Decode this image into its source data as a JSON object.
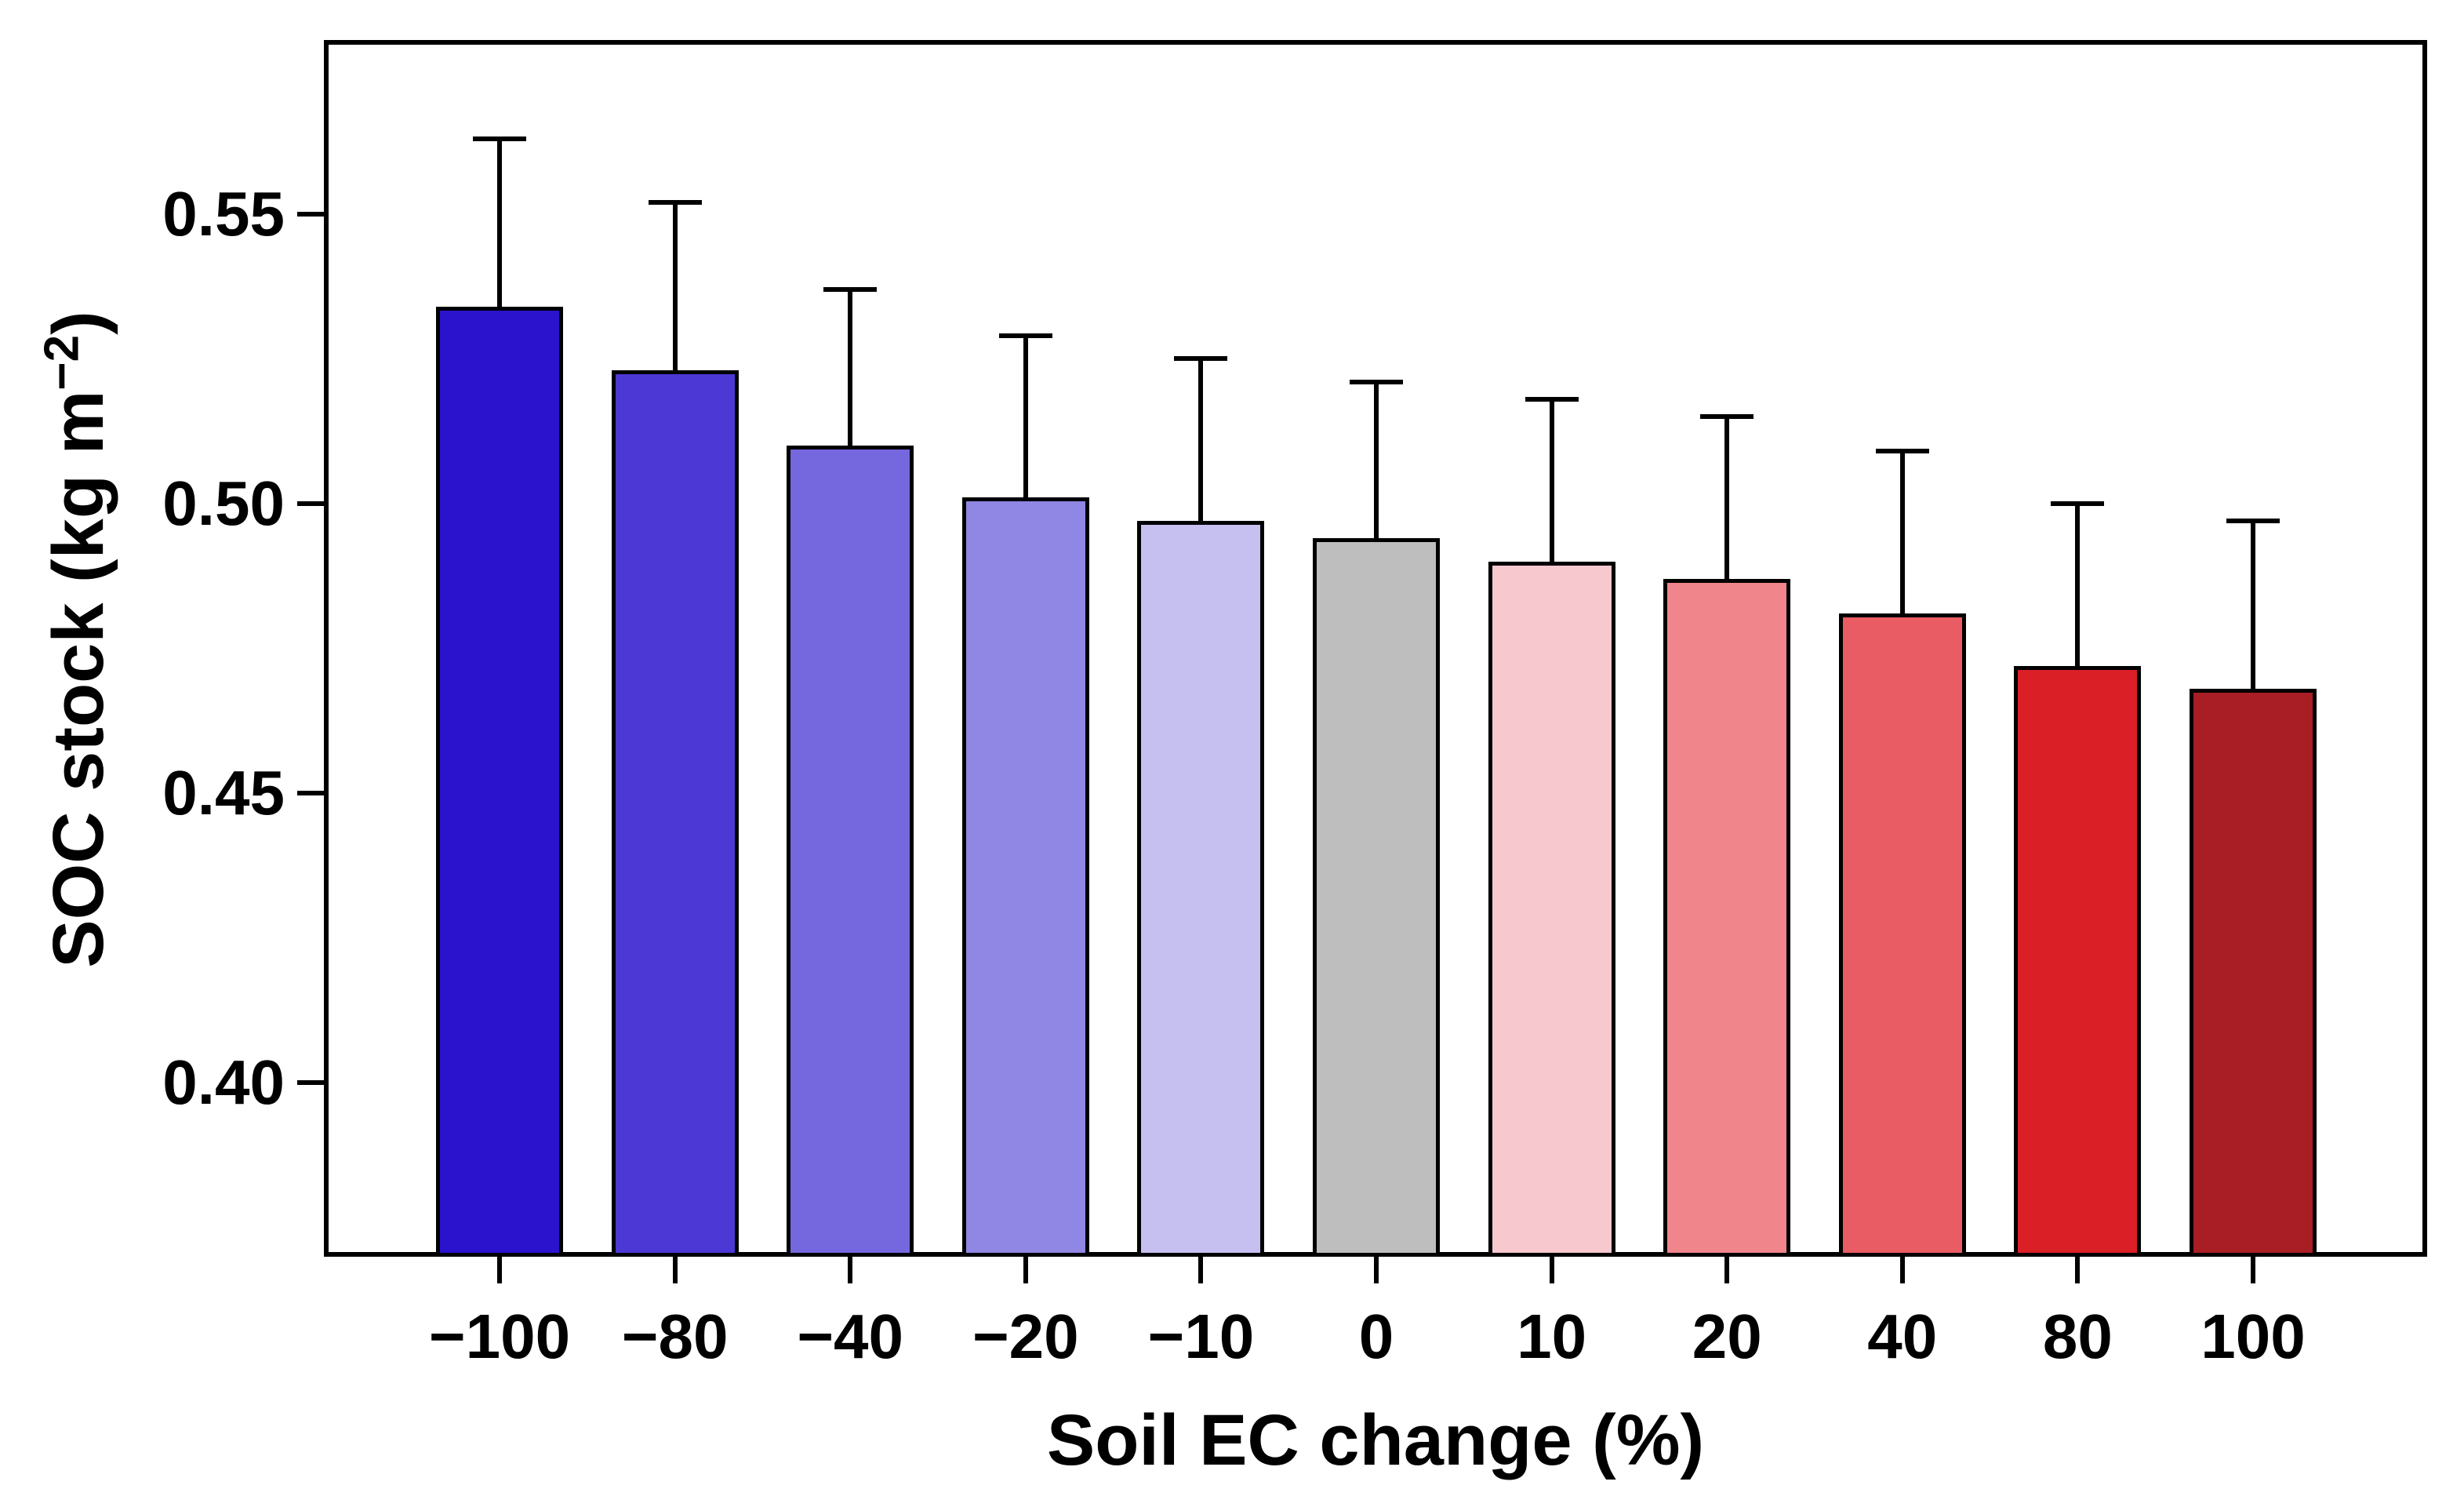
{
  "figure": {
    "xlabel": "Soil EC change (%)",
    "ylabel": {
      "prefix": "SOC stock (kg m",
      "superscript": "−2",
      "suffix": ")"
    }
  },
  "chart_data": {
    "type": "bar",
    "title": "",
    "xlabel": "Soil EC change (%)",
    "ylabel": "SOC stock (kg m⁻²)",
    "categories": [
      "−100",
      "−80",
      "−40",
      "−20",
      "−10",
      "0",
      "10",
      "20",
      "40",
      "80",
      "100"
    ],
    "values": [
      0.534,
      0.523,
      0.51,
      0.501,
      0.497,
      0.494,
      0.49,
      0.487,
      0.481,
      0.472,
      0.468
    ],
    "error_upper_caps": [
      0.563,
      0.552,
      0.537,
      0.529,
      0.525,
      0.521,
      0.518,
      0.515,
      0.509,
      0.5,
      0.497
    ],
    "bar_colors": [
      "#2b13cd",
      "#4c38d5",
      "#7568de",
      "#9086e3",
      "#c5c0ef",
      "#bebebe",
      "#f7c8cd",
      "#f0858b",
      "#ea5c63",
      "#da1f26",
      "#a81e24"
    ],
    "bar_edge_color": "#000000",
    "error_bar_color": "#000000",
    "ylim": [
      0.37,
      0.58
    ],
    "yticks": [
      0.55,
      0.5,
      0.45,
      0.4
    ],
    "ytick_labels": [
      "0.55",
      "0.50",
      "0.45",
      "0.40"
    ],
    "grid": false,
    "legend": null,
    "baseline": 0.37
  }
}
